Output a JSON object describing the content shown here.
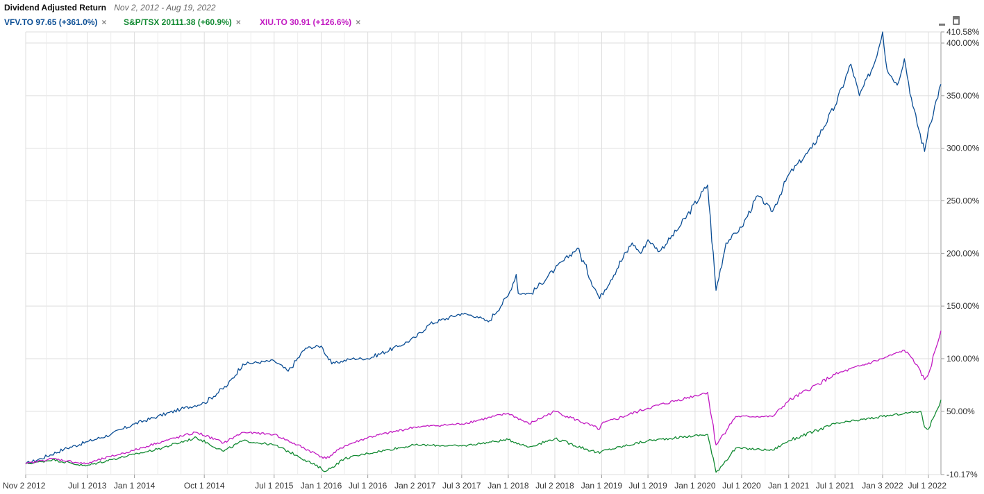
{
  "header": {
    "title": "Dividend Adjusted Return",
    "date_range": "Nov 2, 2012 - Aug 19, 2022"
  },
  "legend": [
    {
      "label": "VFV.TO 97.65 (+361.0%)",
      "color": "#0a4d94",
      "close": "×"
    },
    {
      "label": "S&P/TSX 20111.38 (+60.9%)",
      "color": "#128a32",
      "close": "×"
    },
    {
      "label": "XIU.TO 30.91 (+126.6%)",
      "color": "#c21ac2",
      "close": "×"
    }
  ],
  "toolbar": {
    "minimize_icon": "minimize-icon",
    "maximize_icon": "maximize-icon"
  },
  "chart_data": {
    "type": "line",
    "x_range": [
      "Nov 2 2012",
      "Aug 19 2022"
    ],
    "ylim": [
      -10.17,
      410.58
    ],
    "y_ticks": [
      "410.58%",
      "400.00%",
      "350.00%",
      "300.00%",
      "250.00%",
      "200.00%",
      "150.00%",
      "100.00%",
      "50.00%",
      "-10.17%"
    ],
    "x_ticks": [
      "Nov 2 2012",
      "Jul 1 2013",
      "Jan 1 2014",
      "Oct 1 2014",
      "Jul 1 2015",
      "Jan 1 2016",
      "Jul 1 2016",
      "Jan 2 2017",
      "Jul 3 2017",
      "Jan 1 2018",
      "Jul 2 2018",
      "Jan 1 2019",
      "Jul 1 2019",
      "Jan 1 2020",
      "Jul 1 2020",
      "Jan 1 2021",
      "Jul 1 2021",
      "Jan 3 2022",
      "Jul 1 2022"
    ],
    "grid": true,
    "series": [
      {
        "name": "VFV.TO",
        "color": "#0a4d94",
        "points": [
          [
            "2012-11-02",
            0
          ],
          [
            "2013-01-01",
            5
          ],
          [
            "2013-04-01",
            14
          ],
          [
            "2013-07-01",
            21
          ],
          [
            "2013-10-01",
            28
          ],
          [
            "2014-01-01",
            38
          ],
          [
            "2014-04-01",
            45
          ],
          [
            "2014-07-01",
            52
          ],
          [
            "2014-10-01",
            58
          ],
          [
            "2015-01-01",
            75
          ],
          [
            "2015-03-01",
            95
          ],
          [
            "2015-07-01",
            98
          ],
          [
            "2015-08-25",
            88
          ],
          [
            "2015-11-01",
            110
          ],
          [
            "2016-01-01",
            112
          ],
          [
            "2016-02-11",
            95
          ],
          [
            "2016-05-01",
            100
          ],
          [
            "2016-07-01",
            100
          ],
          [
            "2016-11-01",
            112
          ],
          [
            "2017-01-02",
            120
          ],
          [
            "2017-03-01",
            133
          ],
          [
            "2017-07-03",
            143
          ],
          [
            "2017-09-01",
            140
          ],
          [
            "2017-10-15",
            135
          ],
          [
            "2018-01-01",
            160
          ],
          [
            "2018-02-01",
            180
          ],
          [
            "2018-02-09",
            162
          ],
          [
            "2018-04-01",
            162
          ],
          [
            "2018-07-02",
            185
          ],
          [
            "2018-09-28",
            205
          ],
          [
            "2018-12-24",
            157
          ],
          [
            "2019-01-01",
            162
          ],
          [
            "2019-04-30",
            210
          ],
          [
            "2019-06-03",
            200
          ],
          [
            "2019-07-01",
            213
          ],
          [
            "2019-08-15",
            202
          ],
          [
            "2019-11-01",
            225
          ],
          [
            "2020-02-19",
            265
          ],
          [
            "2020-03-23",
            165
          ],
          [
            "2020-05-01",
            210
          ],
          [
            "2020-07-01",
            225
          ],
          [
            "2020-09-02",
            255
          ],
          [
            "2020-10-30",
            240
          ],
          [
            "2021-01-01",
            275
          ],
          [
            "2021-04-01",
            300
          ],
          [
            "2021-07-01",
            340
          ],
          [
            "2021-09-01",
            380
          ],
          [
            "2021-10-04",
            350
          ],
          [
            "2021-12-01",
            380
          ],
          [
            "2022-01-03",
            410.58
          ],
          [
            "2022-01-20",
            375
          ],
          [
            "2022-03-01",
            360
          ],
          [
            "2022-03-29",
            385
          ],
          [
            "2022-05-01",
            340
          ],
          [
            "2022-06-16",
            297
          ],
          [
            "2022-07-01",
            318
          ],
          [
            "2022-08-19",
            361
          ]
        ]
      },
      {
        "name": "S&P/TSX",
        "color": "#128a32",
        "points": [
          [
            "2012-11-02",
            0
          ],
          [
            "2013-01-01",
            2
          ],
          [
            "2013-02-15",
            4
          ],
          [
            "2013-06-24",
            -2
          ],
          [
            "2013-10-01",
            4
          ],
          [
            "2014-01-01",
            9
          ],
          [
            "2014-04-01",
            14
          ],
          [
            "2014-09-01",
            25
          ],
          [
            "2014-12-16",
            12
          ],
          [
            "2015-03-01",
            22
          ],
          [
            "2015-07-01",
            18
          ],
          [
            "2015-09-29",
            8
          ],
          [
            "2016-01-20",
            -7
          ],
          [
            "2016-04-01",
            5
          ],
          [
            "2016-07-01",
            10
          ],
          [
            "2017-01-02",
            18
          ],
          [
            "2017-07-03",
            17
          ],
          [
            "2018-01-01",
            23
          ],
          [
            "2018-03-23",
            16
          ],
          [
            "2018-07-02",
            24
          ],
          [
            "2018-12-24",
            10
          ],
          [
            "2019-01-01",
            12
          ],
          [
            "2019-07-01",
            22
          ],
          [
            "2020-02-19",
            28
          ],
          [
            "2020-03-23",
            -8
          ],
          [
            "2020-06-08",
            15
          ],
          [
            "2020-10-30",
            13
          ],
          [
            "2021-01-01",
            22
          ],
          [
            "2021-07-01",
            38
          ],
          [
            "2022-01-03",
            45
          ],
          [
            "2022-03-29",
            48
          ],
          [
            "2022-06-01",
            50
          ],
          [
            "2022-06-16",
            35
          ],
          [
            "2022-07-01",
            33
          ],
          [
            "2022-08-19",
            60.9
          ]
        ]
      },
      {
        "name": "XIU.TO",
        "color": "#c21ac2",
        "points": [
          [
            "2012-11-02",
            0
          ],
          [
            "2013-01-01",
            3
          ],
          [
            "2013-02-15",
            5
          ],
          [
            "2013-06-24",
            0
          ],
          [
            "2013-10-01",
            7
          ],
          [
            "2014-01-01",
            13
          ],
          [
            "2014-04-01",
            20
          ],
          [
            "2014-09-01",
            30
          ],
          [
            "2014-12-16",
            20
          ],
          [
            "2015-03-01",
            30
          ],
          [
            "2015-07-01",
            28
          ],
          [
            "2015-09-29",
            18
          ],
          [
            "2016-01-20",
            5
          ],
          [
            "2016-04-01",
            17
          ],
          [
            "2016-07-01",
            25
          ],
          [
            "2017-01-02",
            35
          ],
          [
            "2017-07-03",
            38
          ],
          [
            "2018-01-01",
            48
          ],
          [
            "2018-03-23",
            38
          ],
          [
            "2018-07-02",
            50
          ],
          [
            "2018-12-24",
            33
          ],
          [
            "2019-01-01",
            38
          ],
          [
            "2019-07-01",
            53
          ],
          [
            "2020-02-19",
            68
          ],
          [
            "2020-03-23",
            18
          ],
          [
            "2020-06-08",
            45
          ],
          [
            "2020-10-30",
            45
          ],
          [
            "2021-01-01",
            60
          ],
          [
            "2021-07-01",
            85
          ],
          [
            "2022-01-03",
            100
          ],
          [
            "2022-03-29",
            108
          ],
          [
            "2022-05-01",
            100
          ],
          [
            "2022-06-16",
            80
          ],
          [
            "2022-07-01",
            85
          ],
          [
            "2022-08-19",
            126.6
          ]
        ]
      }
    ]
  }
}
